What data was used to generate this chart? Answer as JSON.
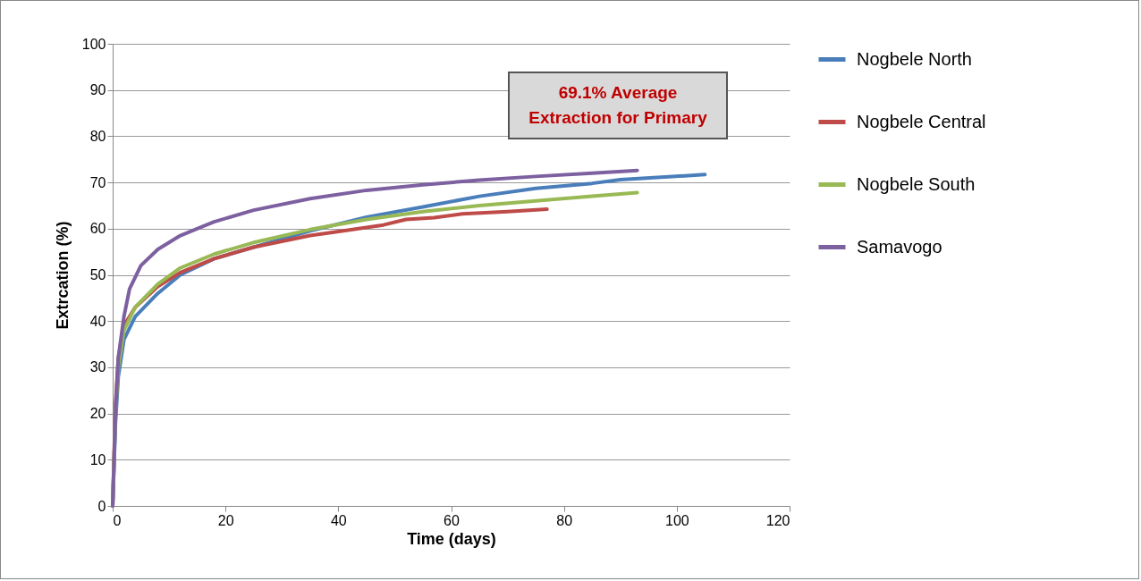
{
  "chart_data": {
    "type": "line",
    "xlabel": "Time (days)",
    "ylabel": "Extrcation (%)",
    "annotations": [
      "69.1% Average Extraction for Primary"
    ],
    "xlim": [
      0,
      120
    ],
    "xticks": [
      0,
      20,
      40,
      60,
      80,
      100,
      120
    ],
    "ylim": [
      0,
      100
    ],
    "yticks": [
      0,
      10,
      20,
      30,
      40,
      50,
      60,
      70,
      80,
      90,
      100
    ],
    "grid": "y",
    "legend": "right",
    "marker": "none",
    "line_style": "solid",
    "series": [
      {
        "name": "Nogbele North",
        "color": "#4a7ebb",
        "x": [
          0,
          0.5,
          1,
          2,
          4,
          8,
          12,
          18,
          25,
          35,
          45,
          55,
          65,
          75,
          85,
          90,
          105
        ],
        "values": [
          0,
          18,
          28,
          36,
          41,
          46,
          50,
          53.5,
          56,
          59.5,
          62.5,
          64.7,
          67,
          68.7,
          69.8,
          70.6,
          71.7
        ]
      },
      {
        "name": "Nogbele Central",
        "color": "#be4b48",
        "x": [
          0,
          0.5,
          1,
          2,
          4,
          8,
          12,
          18,
          25,
          35,
          42,
          48,
          52,
          57,
          62,
          70,
          77
        ],
        "values": [
          0,
          22,
          32,
          39,
          43,
          47.5,
          50.5,
          53.5,
          56,
          58.5,
          59.7,
          60.8,
          62,
          62.4,
          63.2,
          63.7,
          64.2
        ]
      },
      {
        "name": "Nogbele South",
        "color": "#98b954",
        "x": [
          0,
          0.5,
          1,
          2,
          4,
          8,
          12,
          18,
          25,
          35,
          45,
          55,
          65,
          75,
          85,
          93
        ],
        "values": [
          0,
          20,
          30,
          38,
          43,
          48,
          51.5,
          54.5,
          57,
          59.8,
          62,
          63.7,
          65,
          66,
          67,
          67.8
        ]
      },
      {
        "name": "Samavogo",
        "color": "#7d60a0",
        "x": [
          0,
          0.5,
          1,
          2,
          3,
          5,
          8,
          12,
          18,
          25,
          35,
          45,
          55,
          65,
          75,
          85,
          93
        ],
        "values": [
          0,
          20,
          32,
          41,
          47,
          52,
          55.5,
          58.5,
          61.5,
          64,
          66.5,
          68.3,
          69.5,
          70.5,
          71.3,
          72,
          72.6
        ]
      }
    ]
  }
}
